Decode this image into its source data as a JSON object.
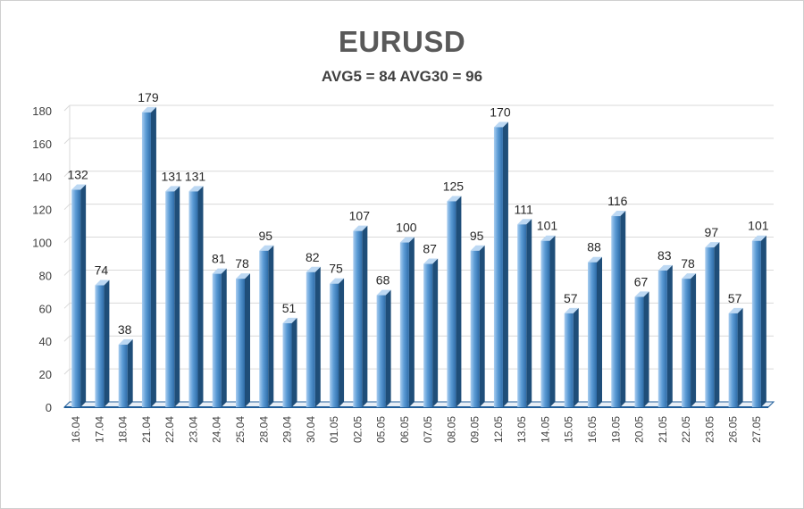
{
  "chart_data": {
    "type": "bar",
    "title": "EURUSD",
    "subtitle": "AVG5 = 84 AVG30 = 96",
    "xlabel": "",
    "ylabel": "",
    "ylim": [
      0,
      180
    ],
    "yticks": [
      0,
      20,
      40,
      60,
      80,
      100,
      120,
      140,
      160,
      180
    ],
    "grid": true,
    "legend": "none",
    "categories": [
      "16.04",
      "17.04",
      "18.04",
      "21.04",
      "22.04",
      "23.04",
      "24.04",
      "25.04",
      "28.04",
      "29.04",
      "30.04",
      "01.05",
      "02.05",
      "05.05",
      "06.05",
      "07.05",
      "08.05",
      "09.05",
      "12.05",
      "13.05",
      "14.05",
      "15.05",
      "16.05",
      "19.05",
      "20.05",
      "21.05",
      "22.05",
      "23.05",
      "26.05",
      "27.05"
    ],
    "values": [
      132,
      74,
      38,
      179,
      131,
      131,
      81,
      78,
      95,
      51,
      82,
      75,
      107,
      68,
      100,
      87,
      125,
      95,
      170,
      111,
      101,
      57,
      88,
      116,
      67,
      83,
      78,
      97,
      57,
      101
    ],
    "colors": {
      "bar_light": "#a9cdf0",
      "bar_mid": "#5b9bd5",
      "bar_dark": "#2e6ca8",
      "bar_side": "#1f4e79",
      "bar_top": "#bcd8f3",
      "floor": "#1f5d99",
      "grid": "#d9d9d9"
    }
  }
}
